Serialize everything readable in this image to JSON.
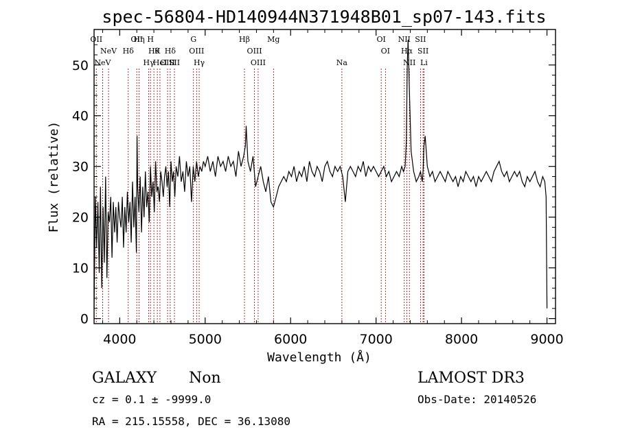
{
  "chart_data": {
    "type": "line",
    "title": "spec-56804-HD140944N371948B01_sp07-143.fits",
    "xlabel": "Wavelength (Å)",
    "ylabel": "Flux (relative)",
    "xlim": [
      3700,
      9100
    ],
    "ylim": [
      -1,
      57
    ],
    "xticks": [
      4000,
      5000,
      6000,
      7000,
      8000,
      9000
    ],
    "yticks": [
      0,
      10,
      20,
      30,
      40,
      50
    ],
    "grid": false,
    "legend": "none",
    "line_color": "#000000",
    "marker_color": "#8b0000",
    "series": [
      {
        "x": [
          3700,
          3715,
          3730,
          3745,
          3760,
          3775,
          3790,
          3805,
          3820,
          3835,
          3850,
          3865,
          3880,
          3895,
          3910,
          3925,
          3940,
          3955,
          3970,
          3985,
          4000,
          4015,
          4030,
          4045,
          4060,
          4075,
          4090,
          4105,
          4120,
          4135,
          4150,
          4165,
          4180,
          4195,
          4203,
          4210,
          4225,
          4240,
          4255,
          4270,
          4285,
          4300,
          4315,
          4330,
          4345,
          4360,
          4375,
          4390,
          4405,
          4420,
          4435,
          4450,
          4465,
          4480,
          4495,
          4510,
          4525,
          4540,
          4555,
          4570,
          4585,
          4600,
          4615,
          4630,
          4645,
          4660,
          4680,
          4700,
          4720,
          4740,
          4760,
          4780,
          4800,
          4820,
          4840,
          4860,
          4880,
          4900,
          4920,
          4940,
          4960,
          4980,
          5000,
          5030,
          5060,
          5090,
          5120,
          5150,
          5180,
          5210,
          5240,
          5270,
          5300,
          5330,
          5360,
          5390,
          5420,
          5450,
          5470,
          5480,
          5500,
          5530,
          5560,
          5590,
          5620,
          5650,
          5680,
          5710,
          5740,
          5770,
          5800,
          5830,
          5860,
          5890,
          5920,
          5950,
          5980,
          6010,
          6040,
          6070,
          6100,
          6130,
          6160,
          6190,
          6220,
          6250,
          6280,
          6310,
          6340,
          6370,
          6400,
          6430,
          6460,
          6490,
          6520,
          6550,
          6580,
          6610,
          6640,
          6670,
          6700,
          6730,
          6760,
          6790,
          6820,
          6850,
          6880,
          6910,
          6940,
          6970,
          7000,
          7030,
          7060,
          7090,
          7120,
          7150,
          7180,
          7210,
          7240,
          7270,
          7300,
          7320,
          7340,
          7355,
          7365,
          7375,
          7390,
          7410,
          7440,
          7470,
          7500,
          7520,
          7540,
          7550,
          7560,
          7575,
          7600,
          7630,
          7660,
          7690,
          7720,
          7750,
          7780,
          7810,
          7840,
          7870,
          7900,
          7930,
          7960,
          7990,
          8020,
          8050,
          8080,
          8110,
          8140,
          8170,
          8200,
          8230,
          8260,
          8290,
          8320,
          8350,
          8380,
          8410,
          8440,
          8470,
          8500,
          8530,
          8560,
          8590,
          8620,
          8650,
          8680,
          8710,
          8740,
          8770,
          8800,
          8830,
          8860,
          8890,
          8920,
          8950,
          8975,
          8990,
          9000
        ],
        "y": [
          2,
          24,
          14,
          23,
          9,
          26,
          6,
          22,
          11,
          28,
          8,
          21,
          19,
          24,
          12,
          23,
          17,
          22,
          15,
          23,
          20,
          18,
          24,
          14,
          22,
          17,
          25,
          19,
          23,
          15,
          27,
          18,
          24,
          13,
          36,
          26,
          21,
          28,
          17,
          26,
          20,
          29,
          22,
          25,
          19,
          30,
          24,
          27,
          21,
          31,
          25,
          26,
          23,
          29,
          27,
          24,
          28,
          30,
          26,
          29,
          22,
          31,
          27,
          29,
          24,
          30,
          28,
          32,
          27,
          29,
          25,
          31,
          28,
          30,
          23,
          30,
          27,
          31,
          28,
          30,
          29,
          31,
          30,
          32,
          29,
          31,
          28,
          32,
          30,
          31,
          29,
          32,
          30,
          31,
          28,
          33,
          30,
          32,
          34,
          38,
          31,
          29,
          32,
          26,
          28,
          30,
          27,
          25,
          28,
          23,
          22,
          24,
          26,
          27,
          28,
          27,
          29,
          28,
          30,
          27,
          29,
          28,
          30,
          27,
          31,
          29,
          28,
          30,
          29,
          27,
          30,
          31,
          29,
          28,
          30,
          29,
          30,
          28,
          23,
          29,
          30,
          29,
          28,
          30,
          29,
          31,
          28,
          30,
          29,
          30,
          29,
          28,
          29,
          30,
          28,
          29,
          27,
          28,
          29,
          28,
          30,
          29,
          30,
          35,
          50,
          55,
          45,
          33,
          29,
          27,
          28,
          29,
          27,
          29,
          34,
          36,
          30,
          28,
          29,
          27,
          28,
          29,
          28,
          27,
          29,
          28,
          27,
          28,
          26,
          28,
          27,
          29,
          28,
          27,
          28,
          26,
          28,
          27,
          28,
          29,
          28,
          27,
          29,
          30,
          31,
          29,
          28,
          29,
          27,
          28,
          29,
          28,
          29,
          27,
          26,
          28,
          27,
          28,
          29,
          27,
          26,
          28,
          27,
          24,
          2
        ]
      }
    ],
    "lines": [
      {
        "wl": 3726,
        "label": "OII",
        "row": 1
      },
      {
        "wl": 3800,
        "label": "NeV",
        "row": 3
      },
      {
        "wl": 3869,
        "label": "NeV",
        "row": 2
      },
      {
        "wl": 4100,
        "label": "Hδ",
        "row": 2
      },
      {
        "wl": 4200,
        "label": "OII",
        "row": 1
      },
      {
        "wl": 4227,
        "label": "Hη",
        "row": 1
      },
      {
        "wl": 4340,
        "label": "Hγ",
        "row": 3
      },
      {
        "wl": 4360,
        "label": "H",
        "row": 1
      },
      {
        "wl": 4400,
        "label": "Hθ",
        "row": 2
      },
      {
        "wl": 4440,
        "label": "K",
        "row": 2
      },
      {
        "wl": 4471,
        "label": "HeI",
        "row": 3
      },
      {
        "wl": 4560,
        "label": "OIII",
        "row": 3
      },
      {
        "wl": 4591,
        "label": "Hδ",
        "row": 2
      },
      {
        "wl": 4640,
        "label": "SII",
        "row": 3
      },
      {
        "wl": 4863,
        "label": "G",
        "row": 1
      },
      {
        "wl": 4900,
        "label": "OIII",
        "row": 2
      },
      {
        "wl": 4930,
        "label": "Hγ",
        "row": 3
      },
      {
        "wl": 5460,
        "label": "Hβ",
        "row": 1
      },
      {
        "wl": 5577,
        "label": "OIII",
        "row": 2
      },
      {
        "wl": 5620,
        "label": "OIII",
        "row": 3
      },
      {
        "wl": 5800,
        "label": "Mg",
        "row": 1
      },
      {
        "wl": 6600,
        "label": "Na",
        "row": 3
      },
      {
        "wl": 7060,
        "label": "OI",
        "row": 1
      },
      {
        "wl": 7110,
        "label": "OI",
        "row": 2
      },
      {
        "wl": 7330,
        "label": "NII",
        "row": 1
      },
      {
        "wl": 7360,
        "label": "Hα",
        "row": 2
      },
      {
        "wl": 7390,
        "label": "NII",
        "row": 3
      },
      {
        "wl": 7520,
        "label": "SII",
        "row": 1
      },
      {
        "wl": 7550,
        "label": "SII",
        "row": 2
      },
      {
        "wl": 7560,
        "label": "Li",
        "row": 3
      }
    ]
  },
  "info": {
    "class_label": "GALAXY",
    "subclass_label": "Non",
    "survey": "LAMOST DR3",
    "cz_line": "cz = 0.1 ± -9999.0",
    "obs_date": "Obs-Date: 20140526",
    "coords": "RA = 215.15558, DEC =  36.13080"
  }
}
